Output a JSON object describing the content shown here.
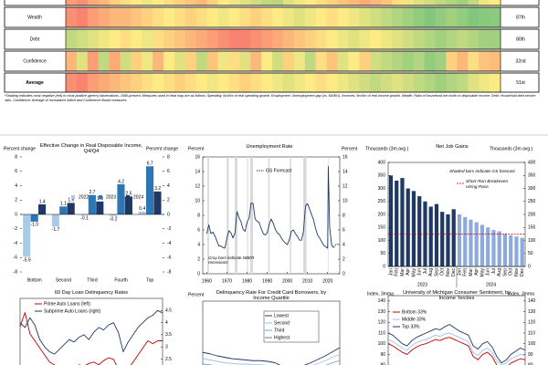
{
  "heatmap": {
    "color_scale": {
      "min": 0,
      "max": 100,
      "colors": [
        "#f8696b",
        "#ffeb84",
        "#63be7b"
      ]
    },
    "rows": [
      {
        "label": null,
        "rank": null,
        "values": [
          20,
          15,
          25,
          30,
          40,
          45,
          50,
          55,
          50,
          45,
          40,
          35,
          30,
          40,
          50,
          55,
          60,
          65,
          70,
          72,
          60,
          55,
          50,
          45,
          40,
          35,
          30,
          25,
          30,
          35,
          45,
          55,
          60,
          65,
          70,
          75,
          80,
          70,
          55,
          50
        ]
      },
      {
        "label": "Wealth",
        "rank": "87th",
        "values": [
          15,
          10,
          20,
          25,
          30,
          30,
          35,
          40,
          45,
          50,
          45,
          40,
          45,
          50,
          55,
          50,
          45,
          40,
          45,
          50,
          55,
          60,
          55,
          50,
          45,
          50,
          55,
          60,
          65,
          70,
          75,
          80,
          85,
          90,
          85,
          80,
          85,
          90,
          88,
          87
        ]
      },
      {
        "label": "Debt",
        "rank": "80th",
        "values": [
          70,
          65,
          60,
          55,
          50,
          45,
          50,
          55,
          45,
          40,
          35,
          30,
          25,
          20,
          15,
          10,
          10,
          15,
          20,
          25,
          30,
          35,
          40,
          45,
          50,
          55,
          60,
          55,
          50,
          55,
          60,
          65,
          70,
          75,
          80,
          75,
          70,
          75,
          80,
          80
        ]
      },
      {
        "label": "Confidence",
        "rank": "32nd",
        "values": [
          30,
          60,
          20,
          70,
          25,
          65,
          40,
          55,
          30,
          50,
          60,
          40,
          70,
          35,
          55,
          45,
          60,
          30,
          50,
          65,
          40,
          55,
          70,
          45,
          35,
          60,
          50,
          40,
          65,
          70,
          75,
          80,
          75,
          85,
          80,
          40,
          30,
          45,
          35,
          32
        ]
      },
      {
        "label": "Average",
        "rank": "51st",
        "values": [
          15,
          10,
          20,
          25,
          30,
          35,
          40,
          45,
          50,
          45,
          40,
          45,
          50,
          55,
          50,
          45,
          40,
          45,
          50,
          55,
          60,
          55,
          50,
          45,
          50,
          55,
          60,
          65,
          70,
          65,
          60,
          65,
          70,
          75,
          80,
          75,
          70,
          60,
          55,
          51
        ]
      }
    ],
    "footnote": "*Shading indicates most negative (red) to most positive (green) observations, 1990-present. Measures used in heat map are as follows: Spending: 6m/6m of real spending growth. Employment: Unemployment gap (vs. NAIRU). Incomes: 6m/6m of real income growth. Wealth: Ratio of household net worth to disposable income. Debt: Household debt service ratio. Confidence: Average of normalized UMich and Conference Board measures."
  },
  "chart_data": [
    {
      "type": "bar",
      "title": "Effective Change in Real Disposable Income, Q4/Q4",
      "ylabel": "Percent change",
      "y2label": "Percent change",
      "categories": [
        "Bottom",
        "Second",
        "Third",
        "Fourth",
        "Top"
      ],
      "series": [
        {
          "name": "2022",
          "color": "#a9cbe8",
          "values": [
            -5.9,
            -1.7,
            -0.1,
            -0.2,
            0.4
          ],
          "value_labels": [
            "-5.9",
            "-1.7",
            "-0.1",
            "-0.2",
            "0.4"
          ]
        },
        {
          "name": "2023",
          "color": "#2e75b6",
          "values": [
            -1.0,
            1.1,
            2.7,
            4.2,
            6.7
          ],
          "value_labels": [
            "-1.0",
            "1.1",
            "2.7",
            "4.2",
            "6.7"
          ]
        },
        {
          "name": "2024",
          "color": "#1f3864",
          "values": [
            1.4,
            1.6,
            1.8,
            2.5,
            3.2
          ],
          "value_labels": [
            "1.4",
            "1.6",
            "1.8",
            "2.5",
            "3.2"
          ]
        }
      ],
      "ylim": [
        -8,
        8
      ],
      "yticks": [
        -8,
        -6,
        -4,
        -2,
        0,
        2,
        4,
        6,
        8
      ],
      "y2lim": [
        -8,
        8
      ],
      "y2ticks": [
        -8,
        -6,
        -4,
        -2,
        0,
        2,
        4,
        6,
        8
      ]
    },
    {
      "type": "line",
      "title": "Unemployment Rate",
      "ylabel": "Percent",
      "y2label": "Percent",
      "series": [
        {
          "color": "#1f3864",
          "x": [
            1960,
            1961,
            1962,
            1963,
            1964,
            1965,
            1966,
            1967,
            1968,
            1969,
            1970,
            1971,
            1972,
            1973,
            1974,
            1975,
            1976,
            1977,
            1978,
            1979,
            1980,
            1981,
            1982,
            1983,
            1984,
            1985,
            1986,
            1987,
            1988,
            1989,
            1990,
            1991,
            1992,
            1993,
            1994,
            1995,
            1996,
            1997,
            1998,
            1999,
            2000,
            2001,
            2002,
            2003,
            2004,
            2005,
            2006,
            2007,
            2008,
            2009,
            2010,
            2011,
            2012,
            2013,
            2014,
            2015,
            2016,
            2017,
            2018,
            2019,
            2020,
            2020.3,
            2021,
            2022,
            2023
          ],
          "values": [
            5.5,
            6.7,
            5.5,
            5.7,
            5.2,
            4.5,
            3.8,
            3.8,
            3.6,
            3.5,
            4.9,
            5.9,
            5.6,
            4.9,
            5.6,
            8.5,
            7.7,
            7.1,
            6.1,
            5.8,
            7.1,
            7.6,
            9.7,
            9.6,
            7.5,
            7.2,
            7.0,
            6.2,
            5.5,
            5.3,
            5.6,
            6.8,
            7.5,
            6.9,
            6.1,
            5.6,
            5.4,
            4.9,
            4.5,
            4.2,
            4.0,
            4.7,
            5.8,
            6.0,
            5.5,
            5.1,
            4.6,
            4.6,
            5.8,
            9.3,
            9.6,
            8.9,
            8.1,
            7.4,
            6.2,
            5.3,
            4.9,
            4.4,
            3.9,
            3.7,
            3.5,
            14.7,
            6.3,
            3.9,
            3.6
          ]
        },
        {
          "name": "GS Forecast",
          "color": "#1f3864",
          "dash": true,
          "x": [
            2023,
            2024,
            2025
          ],
          "values": [
            3.6,
            4.0,
            4.1
          ]
        }
      ],
      "recessions": [
        [
          1960.3,
          1961.1
        ],
        [
          1969.9,
          1970.9
        ],
        [
          1973.9,
          1975.2
        ],
        [
          1980.0,
          1980.5
        ],
        [
          1981.5,
          1982.9
        ],
        [
          1990.5,
          1991.2
        ],
        [
          2001.2,
          2001.9
        ],
        [
          2007.9,
          2009.5
        ],
        [
          2020.1,
          2020.4
        ]
      ],
      "recession_color": "#d9d9d9",
      "annotation": "Gray bars indicate NBER recessions",
      "xlim": [
        1958,
        2026
      ],
      "xticks": [
        1960,
        1970,
        1980,
        1990,
        2000,
        2010,
        2020
      ],
      "ylim": [
        0,
        16
      ],
      "yticks": [
        0,
        2,
        4,
        6,
        8,
        10,
        12,
        14,
        16
      ],
      "y2lim": [
        0,
        16
      ],
      "y2ticks": [
        0,
        2,
        4,
        6,
        8,
        10,
        12,
        14,
        16
      ]
    },
    {
      "type": "bar",
      "title": "Net Job Gains",
      "ylabel": "Thousands (3m avg.)",
      "y2label": "Thousands (3m avg.)",
      "categories": [
        "Jan",
        "Feb",
        "Mar",
        "Apr",
        "May",
        "Jun",
        "Jul",
        "Aug",
        "Sep",
        "Oct",
        "Nov",
        "Dec",
        "Jan",
        "Feb",
        "Mar",
        "Apr",
        "May",
        "Jun",
        "Jul",
        "Aug",
        "Sep",
        "Oct",
        "Nov",
        "Dec"
      ],
      "x_groups": [
        "2023",
        "2024"
      ],
      "series": [
        {
          "color": "#1f3864",
          "values": [
            350,
            330,
            340,
            300,
            290,
            270,
            250,
            230,
            240,
            210,
            200,
            220,
            null,
            null,
            null,
            null,
            null,
            null,
            null,
            null,
            null,
            null,
            null,
            null
          ]
        },
        {
          "color": "#8ea9db",
          "values": [
            null,
            null,
            null,
            null,
            null,
            null,
            null,
            null,
            null,
            null,
            null,
            null,
            200,
            190,
            180,
            170,
            160,
            150,
            140,
            135,
            125,
            120,
            115,
            110
          ]
        }
      ],
      "note": "Shaded bars indicate GS forecast",
      "reference_line": {
        "label": "Short-Run Breakeven Hiring Pace",
        "value": 125,
        "color": "#c00000"
      },
      "ylim": [
        0,
        400
      ],
      "yticks": [
        0,
        50,
        100,
        150,
        200,
        250,
        300,
        350,
        400
      ],
      "y2lim": [
        0,
        400
      ],
      "y2ticks": [
        0,
        50,
        100,
        150,
        200,
        250,
        300,
        350,
        400
      ]
    },
    {
      "type": "line",
      "title": "60 Day Loan Delinquency Rates",
      "series": [
        {
          "name": "Prime Auto Loans (left)",
          "color": "#c00000",
          "values": [
            0.6,
            0.7,
            0.55,
            0.5,
            0.45,
            0.4,
            0.35,
            0.33,
            0.3,
            0.32,
            0.3,
            0.31,
            0.33,
            0.32,
            0.34,
            0.35,
            0.33,
            0.36,
            0.38,
            0.37,
            0.3,
            0.25,
            0.3,
            0.35,
            0.4,
            0.45,
            0.5,
            0.48,
            0.5,
            0.5
          ]
        },
        {
          "name": "Subprime Auto Loans (right)",
          "color": "#1f3864",
          "axis": "y2",
          "values": [
            4.0,
            3.8,
            4.2,
            3.9,
            3.3,
            3.0,
            2.8,
            2.7,
            2.9,
            3.1,
            3.3,
            3.2,
            3.4,
            3.5,
            3.3,
            3.6,
            3.8,
            3.7,
            3.9,
            4.0,
            3.6,
            2.8,
            3.2,
            3.5,
            3.8,
            4.0,
            4.2,
            4.3,
            4.5,
            4.4
          ]
        }
      ],
      "ylim": [
        0.2,
        0.8
      ],
      "y2lim": [
        1.5,
        5
      ],
      "y2ticks": [
        2.5,
        3,
        3.5,
        4,
        4.5
      ]
    },
    {
      "type": "line",
      "title": "Delinquency Rate For Credit Card Borrowers, by Income Quartile",
      "ylabel": "Percent",
      "series": [
        {
          "name": "Lowest",
          "color": "#1f3864",
          "values": [
            4.5,
            4.3,
            4.0,
            3.8,
            3.6,
            3.5,
            3.4,
            3.3,
            3.3,
            3.2,
            3.0,
            2.5,
            2.2,
            2.3,
            2.6,
            3.0,
            3.5,
            4.0,
            4.6,
            5.2
          ]
        },
        {
          "name": "Second",
          "color": "#9dc3e6",
          "values": [
            3.6,
            3.4,
            3.2,
            3.0,
            2.9,
            2.8,
            2.8,
            2.7,
            2.7,
            2.6,
            2.4,
            2.0,
            1.8,
            1.9,
            2.1,
            2.5,
            2.9,
            3.3,
            3.8,
            4.2
          ]
        },
        {
          "name": "Third",
          "color": "#7f9fc9",
          "values": [
            2.8,
            2.7,
            2.5,
            2.4,
            2.3,
            2.2,
            2.2,
            2.1,
            2.1,
            2.0,
            1.9,
            1.6,
            1.4,
            1.5,
            1.7,
            2.0,
            2.3,
            2.6,
            3.0,
            3.3
          ]
        },
        {
          "name": "Highest",
          "color": "#5b7fb5",
          "values": [
            2.0,
            1.9,
            1.8,
            1.7,
            1.6,
            1.6,
            1.5,
            1.5,
            1.5,
            1.4,
            1.3,
            1.1,
            1.0,
            1.1,
            1.2,
            1.4,
            1.6,
            1.8,
            2.1,
            2.3
          ]
        }
      ],
      "ylim": [
        0,
        12
      ]
    },
    {
      "type": "line",
      "title": "University of Michigan Consumer Sentiment, by Income Terciles",
      "ylabel": "Index, 3mma",
      "y2label": "Index, 3mma",
      "series": [
        {
          "name": "Bottom 33%",
          "color": "#c00000",
          "values": [
            100,
            98,
            95,
            92,
            90,
            94,
            97,
            99,
            100,
            102,
            104,
            103,
            105,
            106,
            104,
            102,
            100,
            98,
            88,
            85,
            90,
            92,
            88,
            80,
            76,
            78,
            82,
            84,
            86,
            85
          ]
        },
        {
          "name": "Middle 33%",
          "color": "#9dc3e6",
          "values": [
            104,
            102,
            99,
            96,
            94,
            98,
            101,
            103,
            104,
            106,
            108,
            107,
            109,
            110,
            108,
            106,
            104,
            102,
            92,
            89,
            94,
            96,
            92,
            84,
            80,
            82,
            86,
            88,
            90,
            89
          ]
        },
        {
          "name": "Top 33%",
          "color": "#1f3864",
          "values": [
            110,
            108,
            104,
            100,
            98,
            103,
            106,
            108,
            110,
            112,
            114,
            113,
            116,
            118,
            115,
            112,
            110,
            108,
            98,
            95,
            100,
            102,
            97,
            88,
            82,
            85,
            90,
            93,
            96,
            94
          ]
        }
      ],
      "ylim": [
        75,
        145
      ],
      "yticks": [
        80,
        90,
        100,
        110,
        120,
        130,
        140
      ],
      "y2lim": [
        75,
        145
      ],
      "y2ticks": [
        80,
        90,
        100,
        110,
        120,
        130,
        140
      ]
    }
  ]
}
